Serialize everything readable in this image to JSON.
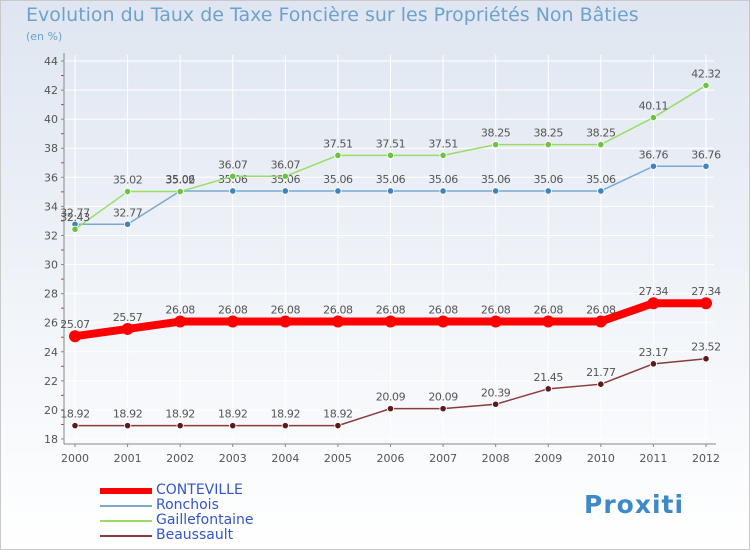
{
  "header": {
    "title": "Evolution du Taux de Taxe Foncière sur les Propriétés Non Bâties",
    "subtitle": "(en %)"
  },
  "logo": {
    "text": "Proxiti"
  },
  "colors": {
    "axis": "#888888",
    "tick_text": "#555555",
    "grid": "#ffffff",
    "title": "#6ea1cc",
    "legend_text": "#3355cc",
    "label_text": "#555555"
  },
  "chart_data": {
    "type": "line",
    "title": "Evolution du Taux de Taxe Foncière sur les Propriétés Non Bâties",
    "ylabel": "(en %)",
    "xlabel": "",
    "ylim": [
      18,
      44
    ],
    "y_ticks": [
      18,
      20,
      22,
      24,
      26,
      28,
      30,
      32,
      34,
      36,
      38,
      40,
      42,
      44
    ],
    "grid": true,
    "legend_position": "bottom-left",
    "categories": [
      "2000",
      "2001",
      "2002",
      "2003",
      "2004",
      "2005",
      "2006",
      "2007",
      "2008",
      "2009",
      "2010",
      "2011",
      "2012"
    ],
    "series": [
      {
        "name": "CONTEVILLE",
        "color": "#ff0000",
        "point_color": "#ff0000",
        "values": [
          25.07,
          25.57,
          26.08,
          26.08,
          26.08,
          26.08,
          26.08,
          26.08,
          26.08,
          26.08,
          26.08,
          27.34,
          27.34
        ],
        "labels": [
          "25.07",
          "25.57",
          "26.08",
          "26.08",
          "26.08",
          "26.08",
          "26.08",
          "26.08",
          "26.08",
          "26.08",
          "26.08",
          "27.34",
          "27.34"
        ]
      },
      {
        "name": "Ronchois",
        "color": "#79a9d3",
        "point_color": "#3f84bf",
        "values": [
          32.77,
          32.77,
          35.06,
          35.06,
          35.06,
          35.06,
          35.06,
          35.06,
          35.06,
          35.06,
          35.06,
          36.76,
          36.76
        ],
        "labels": [
          "32.77",
          "32.77",
          "35.06",
          "35.06",
          "35.06",
          "35.06",
          "35.06",
          "35.06",
          "35.06",
          "35.06",
          "35.06",
          "36.76",
          "36.76"
        ]
      },
      {
        "name": "Gaillefontaine",
        "color": "#99dd66",
        "point_color": "#6dc23f",
        "values": [
          32.43,
          35.02,
          35.02,
          36.07,
          36.07,
          37.51,
          37.51,
          37.51,
          38.25,
          38.25,
          38.25,
          40.11,
          42.32
        ],
        "labels": [
          "32.43",
          "35.02",
          "35.02",
          "36.07",
          "36.07",
          "37.51",
          "37.51",
          "37.51",
          "38.25",
          "38.25",
          "38.25",
          "40.11",
          "42.32"
        ]
      },
      {
        "name": "Beaussault",
        "color": "#8b3a3a",
        "point_color": "#5c1a1a",
        "values": [
          18.92,
          18.92,
          18.92,
          18.92,
          18.92,
          18.92,
          20.09,
          20.09,
          20.39,
          21.45,
          21.77,
          23.17,
          23.52
        ],
        "labels": [
          "18.92",
          "18.92",
          "18.92",
          "18.92",
          "18.92",
          "18.92",
          "20.09",
          "20.09",
          "20.39",
          "21.45",
          "21.77",
          "23.17",
          "23.52"
        ]
      }
    ]
  }
}
